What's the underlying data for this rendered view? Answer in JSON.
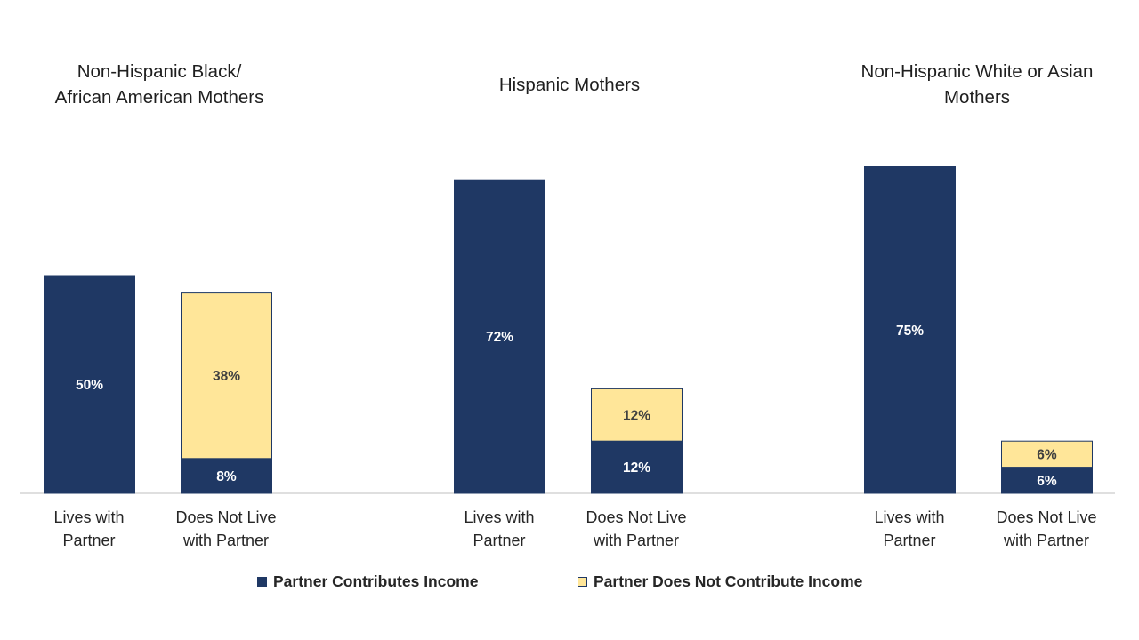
{
  "chart_data": {
    "type": "bar",
    "stacked": true,
    "ylim": [
      0,
      80
    ],
    "grid": false,
    "legend_position": "bottom",
    "series": [
      {
        "name": "Partner Contributes Income",
        "color": "#1f3864",
        "label_color": "#ffffff"
      },
      {
        "name": "Partner Does Not Contribute Income",
        "color": "#ffe699",
        "label_color": "#404040"
      }
    ],
    "groups": [
      {
        "title": "Non-Hispanic Black/ African American Mothers",
        "title_lines": [
          "Non-Hispanic Black/",
          "African American Mothers"
        ],
        "bars": [
          {
            "category": "Lives with Partner",
            "category_lines": [
              "Lives with",
              "Partner"
            ],
            "values": [
              50,
              null
            ],
            "labels": [
              "50%",
              ""
            ]
          },
          {
            "category": "Does Not Live with Partner",
            "category_lines": [
              "Does Not Live",
              "with Partner"
            ],
            "values": [
              8,
              38
            ],
            "labels": [
              "8%",
              "38%"
            ]
          }
        ]
      },
      {
        "title": "Hispanic Mothers",
        "title_lines": [
          "Hispanic Mothers"
        ],
        "bars": [
          {
            "category": "Lives with Partner",
            "category_lines": [
              "Lives with",
              "Partner"
            ],
            "values": [
              72,
              null
            ],
            "labels": [
              "72%",
              ""
            ]
          },
          {
            "category": "Does Not Live with Partner",
            "category_lines": [
              "Does Not Live",
              "with Partner"
            ],
            "values": [
              12,
              12
            ],
            "labels": [
              "12%",
              "12%"
            ]
          }
        ]
      },
      {
        "title": "Non-Hispanic White or Asian Mothers",
        "title_lines": [
          "Non-Hispanic White or Asian",
          "Mothers"
        ],
        "bars": [
          {
            "category": "Lives with Partner",
            "category_lines": [
              "Lives with",
              "Partner"
            ],
            "values": [
              75,
              null
            ],
            "labels": [
              "75%",
              ""
            ]
          },
          {
            "category": "Does Not Live with Partner",
            "category_lines": [
              "Does Not Live",
              "with Partner"
            ],
            "values": [
              6,
              6
            ],
            "labels": [
              "6%",
              "6%"
            ]
          }
        ]
      }
    ]
  }
}
